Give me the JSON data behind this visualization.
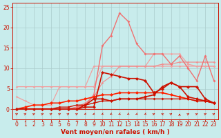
{
  "x": [
    0,
    1,
    2,
    3,
    4,
    5,
    6,
    7,
    8,
    9,
    10,
    11,
    12,
    13,
    14,
    15,
    16,
    17,
    18,
    19,
    20,
    21,
    22,
    23
  ],
  "lines": [
    {
      "y": [
        3.0,
        2.0,
        1.0,
        1.0,
        1.0,
        5.5,
        5.5,
        5.5,
        5.5,
        10.5,
        10.5,
        10.5,
        10.5,
        10.5,
        10.5,
        10.5,
        13.5,
        13.5,
        13.5,
        13.5,
        11.0,
        10.5,
        10.5,
        10.5
      ],
      "color": "#f0a0a0",
      "marker": "D",
      "markersize": 1.8,
      "linewidth": 0.9,
      "zorder": 2
    },
    {
      "y": [
        5.5,
        5.5,
        5.5,
        5.5,
        5.5,
        5.5,
        5.5,
        5.5,
        5.5,
        5.5,
        10.5,
        10.5,
        10.5,
        10.5,
        10.5,
        10.5,
        10.5,
        10.5,
        10.5,
        10.5,
        10.5,
        10.5,
        10.5,
        10.5
      ],
      "color": "#f0a0a0",
      "marker": "D",
      "markersize": 1.8,
      "linewidth": 0.9,
      "zorder": 2
    },
    {
      "y": [
        0,
        0,
        0,
        0,
        0,
        0,
        0,
        0.5,
        1.0,
        3.5,
        15.5,
        18.0,
        23.5,
        21.5,
        16.0,
        13.5,
        13.5,
        13.5,
        11.0,
        13.0,
        10.0,
        7.0,
        13.0,
        7.0
      ],
      "color": "#f07070",
      "marker": "D",
      "markersize": 2.0,
      "linewidth": 1.0,
      "zorder": 3
    },
    {
      "y": [
        0,
        0,
        0,
        0,
        0,
        0,
        0,
        0.5,
        1.5,
        3.0,
        6.5,
        8.0,
        10.5,
        10.5,
        10.5,
        10.5,
        10.5,
        11.0,
        11.0,
        11.5,
        11.5,
        11.5,
        11.5,
        11.5
      ],
      "color": "#f09090",
      "marker": "D",
      "markersize": 1.8,
      "linewidth": 0.9,
      "zorder": 2
    },
    {
      "comment": "dark red - peak x=10 ~9, then 8.5, 8, 7.5, 7, drops at 16 to ~4, rises 17-18",
      "y": [
        0,
        0,
        0,
        0,
        0,
        0,
        0,
        0,
        0.5,
        0.5,
        9.0,
        8.5,
        8.0,
        7.5,
        7.5,
        7.0,
        4.0,
        5.0,
        6.5,
        5.5,
        3.0,
        2.5,
        2.0,
        1.5
      ],
      "color": "#cc1100",
      "marker": "D",
      "markersize": 2.5,
      "linewidth": 1.2,
      "zorder": 5
    },
    {
      "y": [
        0,
        0,
        0,
        0,
        0,
        0,
        0,
        0,
        1.0,
        2.5,
        2.5,
        2.0,
        2.5,
        2.5,
        2.5,
        3.0,
        3.5,
        5.5,
        6.5,
        5.5,
        5.5,
        5.5,
        2.5,
        1.5
      ],
      "color": "#cc1100",
      "marker": "D",
      "markersize": 2.5,
      "linewidth": 1.2,
      "zorder": 5
    },
    {
      "y": [
        0,
        0.5,
        1.0,
        1.0,
        1.5,
        1.5,
        2.0,
        2.0,
        2.5,
        3.0,
        3.5,
        3.5,
        4.0,
        4.0,
        4.0,
        4.0,
        4.0,
        4.0,
        3.5,
        3.0,
        2.5,
        2.0,
        2.0,
        1.5
      ],
      "color": "#ff2200",
      "marker": "D",
      "markersize": 2.5,
      "linewidth": 1.2,
      "zorder": 4
    },
    {
      "y": [
        0,
        0,
        0,
        0,
        0,
        0.5,
        0.5,
        1.0,
        1.0,
        1.5,
        2.0,
        2.0,
        2.5,
        2.5,
        2.5,
        2.5,
        2.5,
        2.5,
        2.5,
        2.5,
        2.5,
        2.0,
        2.0,
        1.5
      ],
      "color": "#cc1100",
      "marker": "D",
      "markersize": 2.0,
      "linewidth": 1.0,
      "zorder": 4
    }
  ],
  "wind_arrows": {
    "directions_deg": [
      45,
      45,
      45,
      45,
      45,
      45,
      45,
      45,
      200,
      200,
      215,
      215,
      215,
      215,
      215,
      215,
      45,
      135,
      45,
      90,
      45,
      45,
      45,
      45
    ],
    "y_data": -1.2,
    "color": "#cc1100",
    "size": 4.0
  },
  "xlabel": "Vent moyen/en rafales ( km/h )",
  "xlabel_color": "#cc1100",
  "background_color": "#c8ecec",
  "grid_color": "#aacccc",
  "ylim": [
    -2.5,
    26
  ],
  "xlim": [
    -0.5,
    23.5
  ],
  "yticks": [
    0,
    5,
    10,
    15,
    20,
    25
  ],
  "xticks": [
    0,
    1,
    2,
    3,
    4,
    5,
    6,
    7,
    8,
    9,
    10,
    11,
    12,
    13,
    14,
    15,
    16,
    17,
    18,
    19,
    20,
    21,
    22,
    23
  ],
  "tick_color": "#cc1100",
  "axis_color": "#cc1100",
  "tick_fontsize": 5.5,
  "xlabel_fontsize": 6.5
}
